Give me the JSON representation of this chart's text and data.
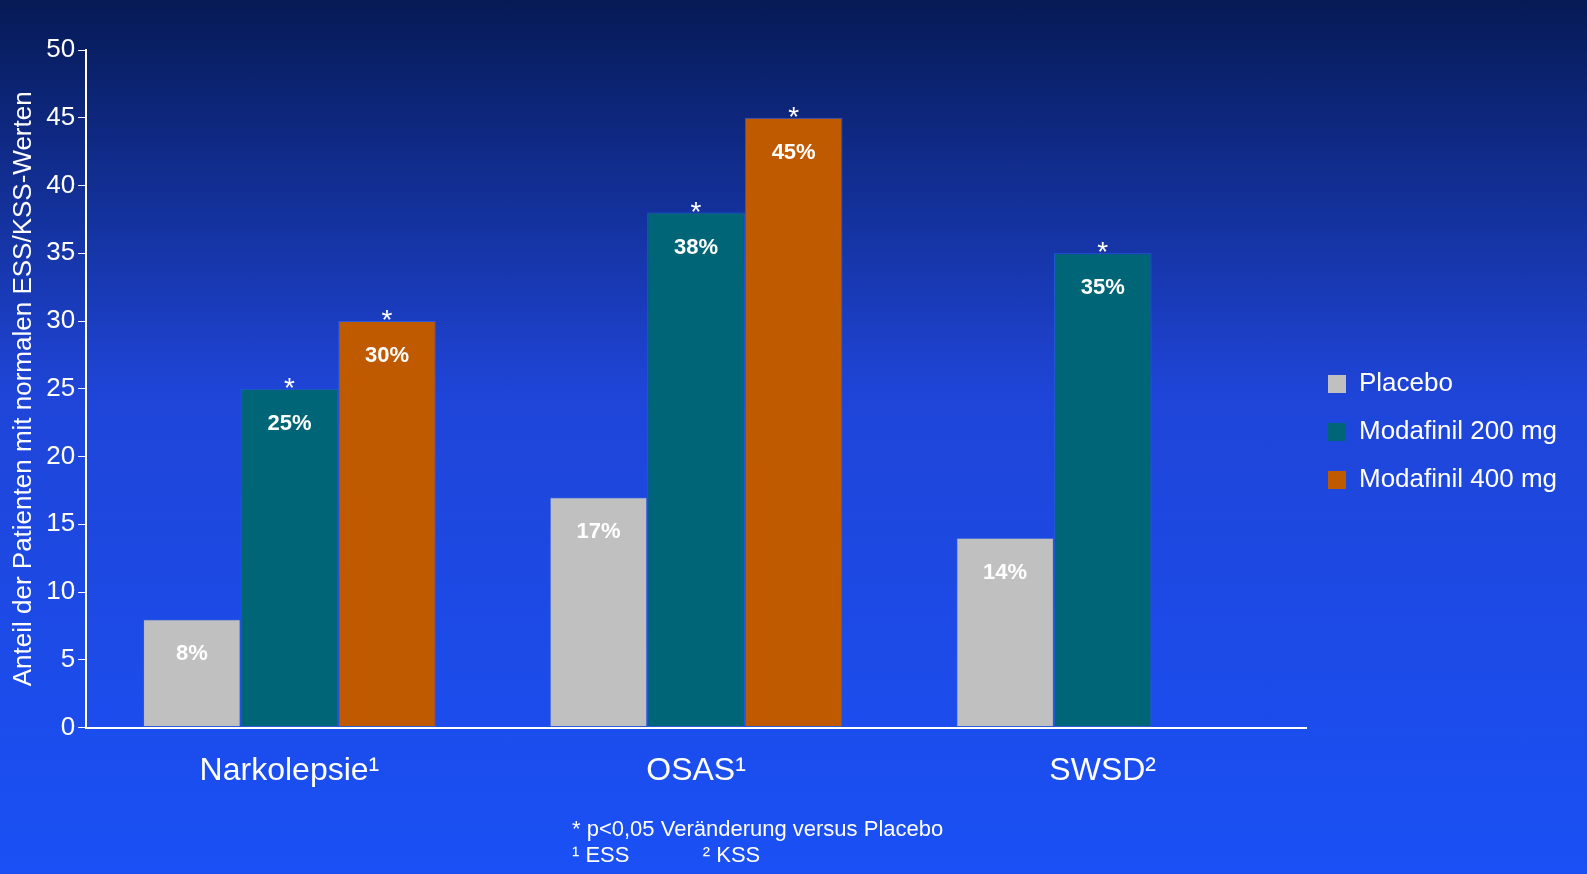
{
  "chart_data": {
    "type": "bar",
    "ylabel": "Anteil der Patienten mit normalen ESS/KSS-Werten",
    "categories": [
      "Narkolepsie¹",
      "OSAS¹",
      "SWSD²"
    ],
    "series": [
      {
        "name": "Placebo",
        "color": "#c0c0c0",
        "values": [
          8,
          17,
          14
        ],
        "value_labels": [
          "8%",
          "17%",
          "14%"
        ]
      },
      {
        "name": "Modafinil 200 mg",
        "color": "#006677",
        "values": [
          25,
          38,
          35
        ],
        "value_labels": [
          "25%",
          "38%",
          "35%"
        ]
      },
      {
        "name": "Modafinil 400 mg",
        "color": "#c05a00",
        "values": [
          30,
          45,
          null
        ],
        "value_labels": [
          "30%",
          "45%",
          null
        ]
      }
    ],
    "ylim": [
      0,
      50
    ],
    "yticks": [
      0,
      5,
      10,
      15,
      20,
      25,
      30,
      35,
      40,
      45,
      50
    ],
    "grid": false,
    "legend": "right",
    "annotations": [
      "*",
      "*",
      "*",
      "*",
      "*",
      "* p<0,05 Veränderung versus Placebo",
      "¹ ESS            ² KSS"
    ]
  }
}
